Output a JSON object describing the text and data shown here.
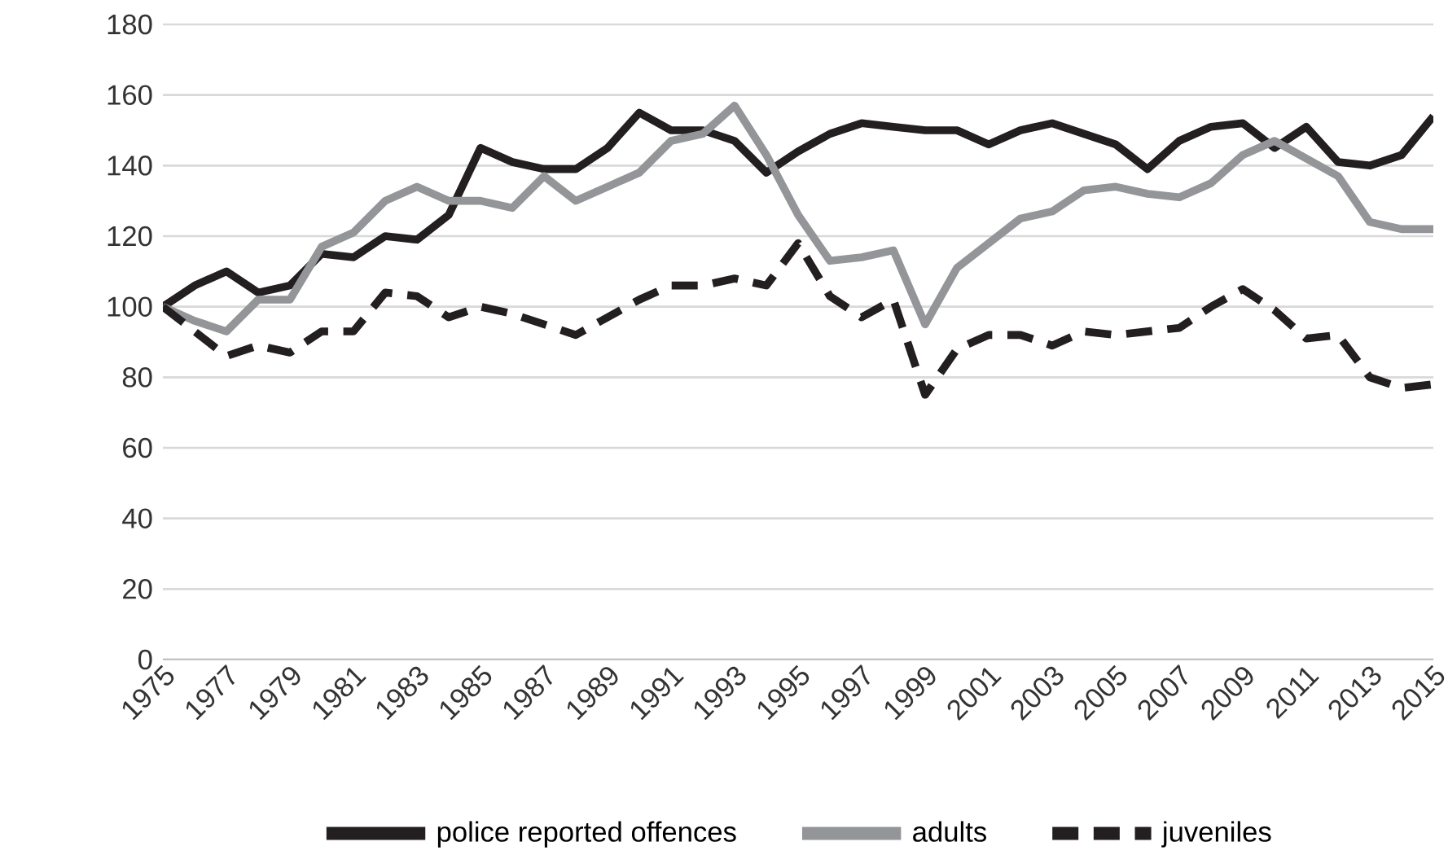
{
  "chart_data": {
    "type": "line",
    "x": [
      1975,
      1976,
      1977,
      1978,
      1979,
      1980,
      1981,
      1982,
      1983,
      1984,
      1985,
      1986,
      1987,
      1988,
      1989,
      1990,
      1991,
      1992,
      1993,
      1994,
      1995,
      1996,
      1997,
      1998,
      1999,
      2000,
      2001,
      2002,
      2003,
      2004,
      2005,
      2006,
      2007,
      2008,
      2009,
      2010,
      2011,
      2012,
      2013,
      2014,
      2015
    ],
    "series": [
      {
        "name": "police reported offences",
        "color": "#231f20",
        "line_style": "solid",
        "values": [
          100,
          106,
          110,
          104,
          106,
          115,
          114,
          120,
          119,
          126,
          145,
          141,
          139,
          139,
          145,
          155,
          150,
          150,
          147,
          138,
          144,
          149,
          152,
          151,
          150,
          150,
          146,
          150,
          152,
          149,
          146,
          139,
          147,
          151,
          152,
          145,
          151,
          141,
          140,
          143,
          154
        ]
      },
      {
        "name": "adults",
        "color": "#939598",
        "line_style": "solid",
        "values": [
          100,
          96,
          93,
          102,
          102,
          117,
          121,
          130,
          134,
          130,
          130,
          128,
          137,
          130,
          134,
          138,
          147,
          149,
          157,
          143,
          126,
          113,
          114,
          116,
          95,
          111,
          118,
          125,
          127,
          133,
          134,
          132,
          131,
          135,
          143,
          147,
          142,
          137,
          124,
          122,
          122
        ]
      },
      {
        "name": "juveniles",
        "color": "#231f20",
        "line_style": "dashed",
        "values": [
          100,
          93,
          86,
          89,
          87,
          93,
          93,
          104,
          103,
          97,
          100,
          98,
          95,
          92,
          97,
          102,
          106,
          106,
          108,
          106,
          118,
          103,
          97,
          102,
          75,
          88,
          92,
          92,
          89,
          93,
          92,
          93,
          94,
          100,
          105,
          99,
          91,
          92,
          80,
          77,
          78
        ]
      }
    ],
    "xlim": [
      1975,
      2015
    ],
    "xticks": [
      1975,
      1977,
      1979,
      1981,
      1983,
      1985,
      1987,
      1989,
      1991,
      1993,
      1995,
      1997,
      1999,
      2001,
      2003,
      2005,
      2007,
      2009,
      2011,
      2013,
      2015
    ],
    "ylim": [
      0,
      180
    ],
    "yticks": [
      0,
      20,
      40,
      60,
      80,
      100,
      120,
      140,
      160,
      180
    ],
    "grid": "y",
    "legend": "bottom",
    "marker": "none"
  }
}
